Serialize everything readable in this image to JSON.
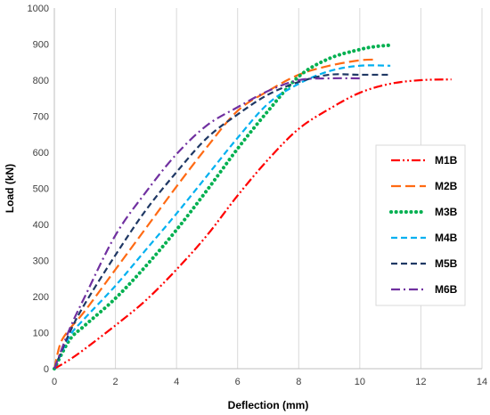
{
  "chart_data": {
    "type": "line",
    "xlabel": "Deflection (mm)",
    "ylabel": "Load (kN)",
    "xlim": [
      0,
      14
    ],
    "ylim": [
      0,
      1000
    ],
    "xticks": [
      0,
      2,
      4,
      6,
      8,
      10,
      12,
      14
    ],
    "yticks": [
      0,
      100,
      200,
      300,
      400,
      500,
      600,
      700,
      800,
      900,
      1000
    ],
    "grid": "vertical",
    "legend_position": "right",
    "series": [
      {
        "name": "M1B",
        "color": "#ff0000",
        "dash": "dash-dot-dot",
        "x": [
          0,
          0.5,
          1,
          2,
          3,
          4,
          5,
          6,
          7,
          8,
          9,
          10,
          11,
          12,
          13
        ],
        "y": [
          0,
          25,
          55,
          120,
          190,
          275,
          370,
          480,
          580,
          665,
          720,
          765,
          790,
          800,
          802
        ]
      },
      {
        "name": "M2B",
        "color": "#ff6a13",
        "dash": "long-dash",
        "x": [
          0,
          0.2,
          0.5,
          1,
          2,
          3,
          4,
          5,
          6,
          7,
          8,
          9,
          10,
          10.5
        ],
        "y": [
          0,
          70,
          110,
          160,
          275,
          390,
          505,
          615,
          715,
          770,
          815,
          840,
          855,
          857
        ]
      },
      {
        "name": "M3B",
        "color": "#00b050",
        "dash": "dot",
        "x": [
          0,
          0.5,
          1,
          2,
          3,
          4,
          5,
          6,
          7,
          8,
          9,
          10,
          10.5,
          11
        ],
        "y": [
          0,
          80,
          120,
          195,
          285,
          385,
          495,
          610,
          715,
          810,
          860,
          885,
          893,
          897
        ]
      },
      {
        "name": "M4B",
        "color": "#00b0f0",
        "dash": "dash",
        "x": [
          0,
          0.5,
          1,
          2,
          3,
          4,
          5,
          6,
          7,
          8,
          9,
          10,
          11
        ],
        "y": [
          0,
          90,
          140,
          230,
          330,
          430,
          535,
          640,
          735,
          790,
          825,
          840,
          840
        ]
      },
      {
        "name": "M5B",
        "color": "#1f3864",
        "dash": "dash",
        "x": [
          0,
          0.5,
          1,
          2,
          3,
          4,
          5,
          6,
          7,
          8,
          9,
          10,
          11
        ],
        "y": [
          0,
          100,
          180,
          315,
          440,
          545,
          640,
          705,
          760,
          795,
          815,
          815,
          815
        ]
      },
      {
        "name": "M6B",
        "color": "#7030a0",
        "dash": "dash-dot",
        "x": [
          0,
          0.5,
          1,
          2,
          3,
          4,
          5,
          6,
          7,
          8,
          9,
          10
        ],
        "y": [
          0,
          110,
          200,
          370,
          490,
          595,
          675,
          725,
          770,
          800,
          805,
          805
        ]
      }
    ]
  }
}
